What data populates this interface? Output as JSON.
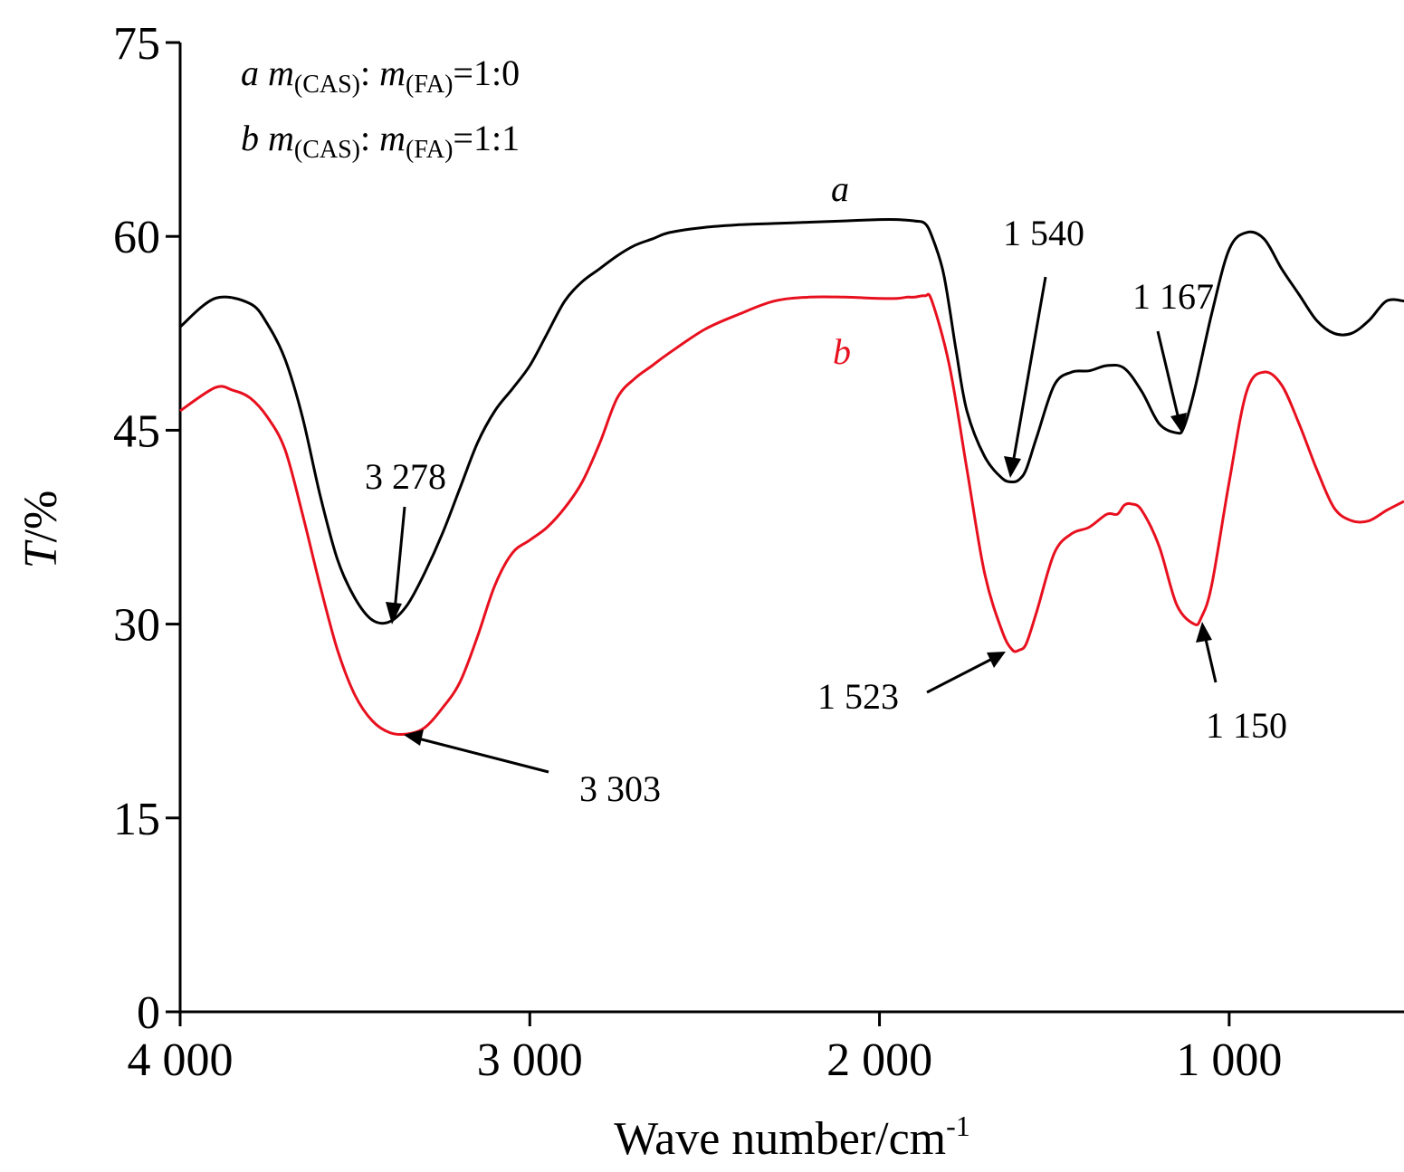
{
  "chart_data": {
    "type": "line",
    "xlabel": "Wave number/cm",
    "xlabel_sup": "-1",
    "ylabel_italic": "T",
    "ylabel_rest": "/%",
    "x_reversed": true,
    "xlim": [
      4000,
      500
    ],
    "ylim": [
      0,
      75
    ],
    "x_ticks": [
      4000,
      3000,
      2000,
      1000
    ],
    "x_tick_labels": [
      "4 000",
      "3 000",
      "2 000",
      "1 000"
    ],
    "y_ticks": [
      0,
      15,
      30,
      45,
      60,
      75
    ],
    "y_tick_labels": [
      "0",
      "15",
      "30",
      "45",
      "60",
      "75"
    ],
    "grid": false,
    "legend": [
      {
        "letter": "a",
        "m1": "m",
        "sub1": "(CAS)",
        "sep": ": ",
        "m2": "m",
        "sub2": "(FA)",
        "ratio": "=1:0"
      },
      {
        "letter": "b",
        "m1": "m",
        "sub1": "(CAS)",
        "sep": ": ",
        "m2": "m",
        "sub2": "(FA)",
        "ratio": "=1:1"
      }
    ],
    "series": [
      {
        "label": "a",
        "color": "#000000",
        "x": [
          4000,
          3900,
          3800,
          3750,
          3700,
          3650,
          3600,
          3550,
          3500,
          3450,
          3400,
          3350,
          3300,
          3250,
          3200,
          3150,
          3100,
          3050,
          3000,
          2950,
          2900,
          2850,
          2800,
          2750,
          2700,
          2650,
          2600,
          2500,
          2400,
          2300,
          2200,
          2100,
          2000,
          1950,
          1900,
          1870,
          1850,
          1820,
          1800,
          1780,
          1750,
          1700,
          1650,
          1620,
          1600,
          1580,
          1550,
          1500,
          1450,
          1400,
          1350,
          1300,
          1250,
          1200,
          1150,
          1130,
          1100,
          1050,
          1000,
          950,
          900,
          850,
          800,
          750,
          700,
          650,
          600,
          550,
          500
        ],
        "y": [
          53.0,
          55.2,
          54.8,
          53.2,
          50.5,
          46.0,
          40.0,
          35.0,
          32.0,
          30.3,
          30.2,
          31.5,
          34.0,
          37.0,
          40.5,
          44.0,
          46.5,
          48.2,
          50.0,
          52.5,
          55.0,
          56.5,
          57.5,
          58.5,
          59.3,
          59.8,
          60.3,
          60.7,
          60.9,
          61.0,
          61.1,
          61.2,
          61.3,
          61.3,
          61.2,
          61.0,
          60.0,
          57.5,
          54.5,
          51.0,
          46.5,
          43.0,
          41.3,
          41.0,
          41.2,
          42.0,
          44.5,
          48.5,
          49.5,
          49.6,
          50.0,
          49.8,
          48.0,
          45.5,
          44.8,
          45.2,
          48.0,
          54.0,
          59.0,
          60.3,
          59.8,
          57.5,
          55.5,
          53.5,
          52.5,
          52.5,
          53.5,
          55.0,
          55.0
        ]
      },
      {
        "label": "b",
        "color": "#e8101e",
        "x": [
          4000,
          3900,
          3850,
          3800,
          3750,
          3700,
          3650,
          3600,
          3550,
          3500,
          3450,
          3400,
          3350,
          3300,
          3250,
          3200,
          3150,
          3100,
          3050,
          3000,
          2950,
          2900,
          2850,
          2800,
          2750,
          2700,
          2650,
          2600,
          2500,
          2400,
          2300,
          2200,
          2100,
          2000,
          1950,
          1920,
          1900,
          1870,
          1850,
          1800,
          1750,
          1700,
          1650,
          1620,
          1600,
          1580,
          1550,
          1500,
          1450,
          1400,
          1350,
          1320,
          1300,
          1280,
          1250,
          1200,
          1150,
          1100,
          1080,
          1050,
          1000,
          950,
          900,
          850,
          800,
          750,
          700,
          650,
          600,
          550,
          500
        ],
        "y": [
          46.5,
          48.3,
          48.1,
          47.5,
          46.0,
          43.5,
          38.5,
          33.0,
          28.0,
          24.5,
          22.5,
          21.6,
          21.5,
          22.0,
          23.5,
          25.5,
          29.0,
          33.0,
          35.5,
          36.5,
          37.5,
          39.0,
          41.0,
          44.0,
          47.5,
          49.0,
          50.0,
          51.0,
          52.8,
          54.0,
          55.0,
          55.3,
          55.3,
          55.2,
          55.2,
          55.3,
          55.3,
          55.4,
          55.0,
          50.0,
          42.0,
          34.0,
          29.5,
          28.0,
          28.0,
          28.5,
          31.0,
          35.5,
          37.0,
          37.5,
          38.5,
          38.5,
          39.2,
          39.3,
          38.8,
          36.0,
          31.5,
          30.0,
          30.5,
          33.0,
          41.0,
          48.0,
          49.5,
          48.5,
          45.5,
          42.0,
          39.0,
          38.0,
          38.0,
          38.8,
          39.5
        ]
      }
    ],
    "annotations": [
      {
        "label": "3 278",
        "series": "a"
      },
      {
        "label": "3 303",
        "series": "b"
      },
      {
        "label": "1 540",
        "series": "a"
      },
      {
        "label": "1 523",
        "series": "b"
      },
      {
        "label": "1 167",
        "series": "a"
      },
      {
        "label": "1 150",
        "series": "b"
      }
    ]
  }
}
